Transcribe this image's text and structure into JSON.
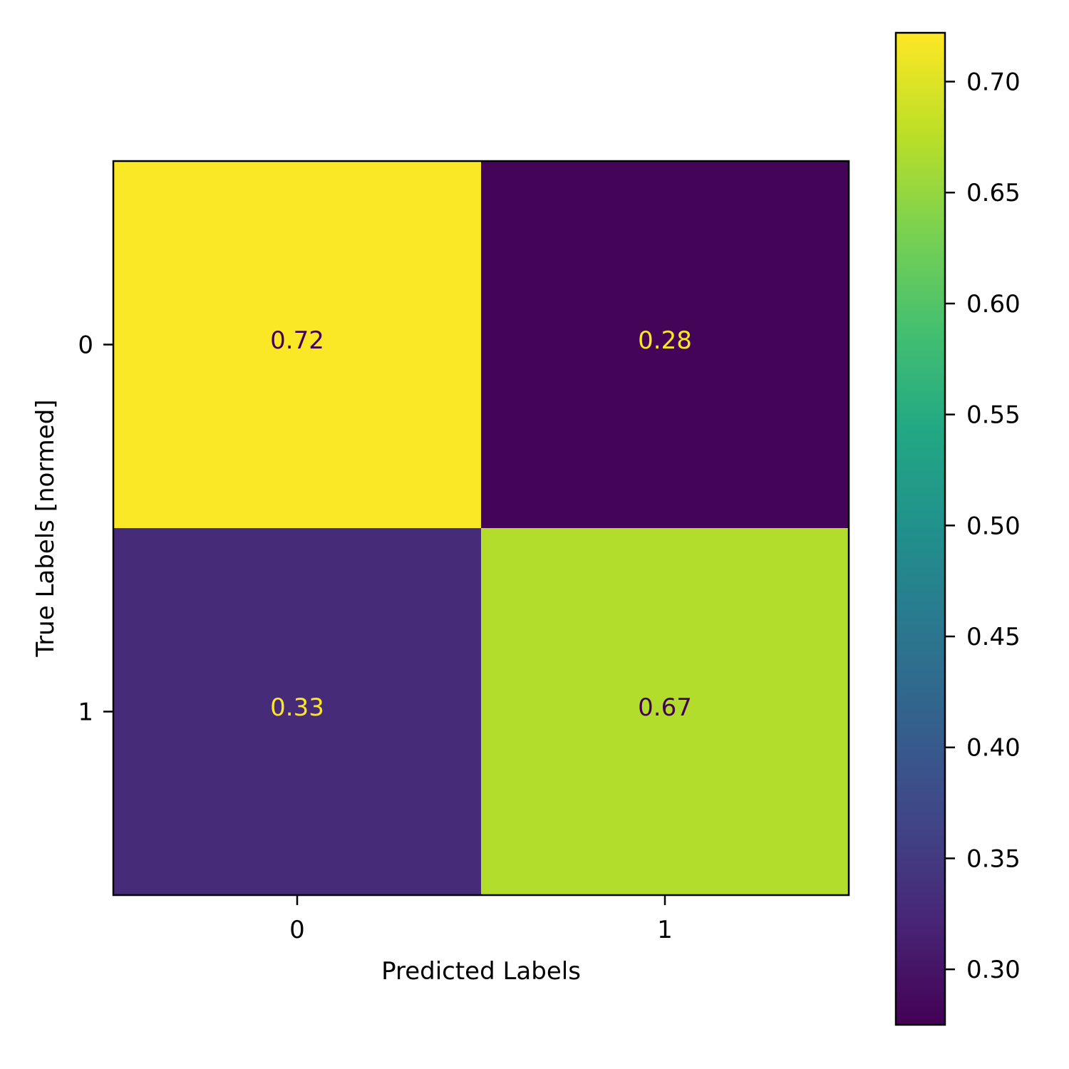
{
  "chart_data": {
    "type": "heatmap",
    "title": "",
    "xlabel": "Predicted Labels",
    "ylabel": "True Labels [normed]",
    "x_categories": [
      "0",
      "1"
    ],
    "y_categories": [
      "0",
      "1"
    ],
    "values": [
      [
        0.72,
        0.28
      ],
      [
        0.33,
        0.67
      ]
    ],
    "value_labels": [
      [
        "0.72",
        "0.28"
      ],
      [
        "0.33",
        "0.67"
      ]
    ],
    "colormap": "viridis",
    "colorbar": {
      "range": [
        0.275,
        0.722
      ],
      "ticks": [
        0.3,
        0.35,
        0.4,
        0.45,
        0.5,
        0.55,
        0.6,
        0.65,
        0.7
      ],
      "tick_labels": [
        "0.30",
        "0.35",
        "0.40",
        "0.45",
        "0.50",
        "0.55",
        "0.60",
        "0.65",
        "0.70"
      ]
    },
    "grid": false
  }
}
